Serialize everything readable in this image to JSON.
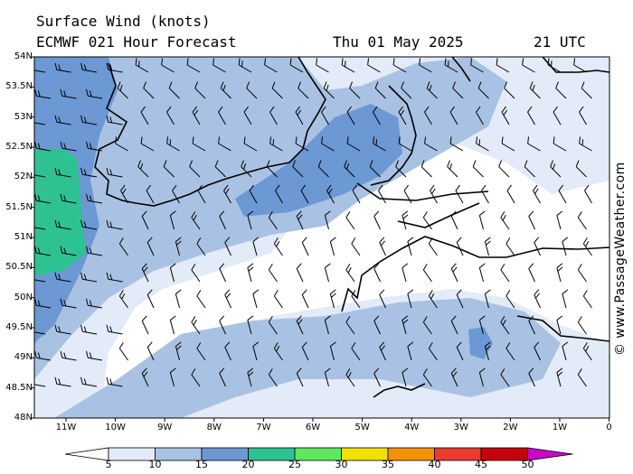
{
  "header": {
    "title_line1": "Surface Wind (knots)",
    "title_line2": "ECMWF 021 Hour Forecast",
    "date": "Thu 01 May 2025",
    "time": "21 UTC"
  },
  "copyright": "© www.PassageWeather.com",
  "map": {
    "lat_labels": [
      "54N",
      "53.5N",
      "53N",
      "52.5N",
      "52N",
      "51.5N",
      "51N",
      "50.5N",
      "50N",
      "49.5N",
      "49N",
      "48.5N",
      "48N"
    ],
    "lon_labels": [
      "11W",
      "10W",
      "9W",
      "8W",
      "7W",
      "6W",
      "5W",
      "4W",
      "3W",
      "2W",
      "1W",
      "0"
    ],
    "coastline_color": "#000000",
    "background_color": "#ffffff"
  },
  "legend": {
    "labels": [
      "5",
      "10",
      "15",
      "20",
      "25",
      "30",
      "35",
      "40",
      "45",
      "50"
    ],
    "colors": [
      "#e2ebf7",
      "#a9c2e3",
      "#6c98d4",
      "#2ec293",
      "#5de85d",
      "#f0e100",
      "#f39200",
      "#ec3a2f",
      "#c5000b",
      "#c808c8"
    ],
    "low_color": "#ffffff"
  }
}
